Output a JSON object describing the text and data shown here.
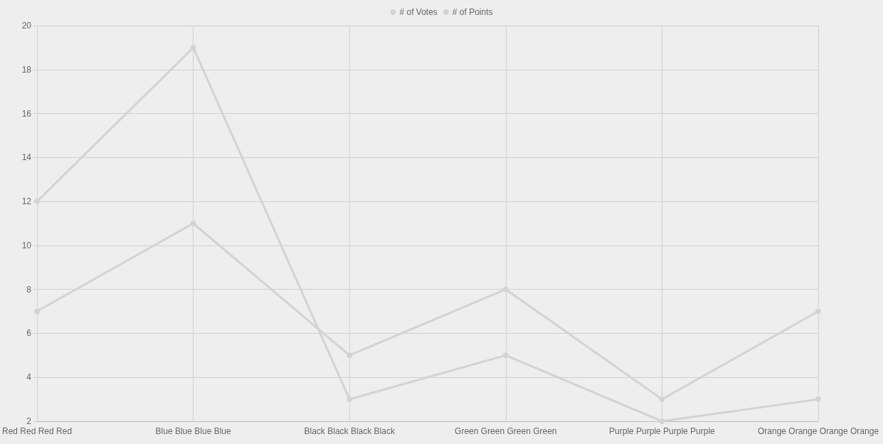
{
  "chart_data": {
    "type": "line",
    "categories": [
      "Red Red Red Red",
      "Blue Blue Blue Blue",
      "Black Black Black Black",
      "Green Green Green Green",
      "Purple Purple Purple Purple",
      "Orange Orange Orange Orange"
    ],
    "series": [
      {
        "name": "# of Votes",
        "color": "#d3d3d3",
        "values": [
          12,
          19,
          3,
          5,
          2,
          3
        ]
      },
      {
        "name": "# of Points",
        "color": "#d3d3d3",
        "values": [
          7,
          11,
          5,
          8,
          3,
          7
        ]
      }
    ],
    "ylim": [
      2,
      20
    ],
    "yticks": [
      2,
      4,
      6,
      8,
      10,
      12,
      14,
      16,
      18,
      20
    ],
    "grid": true,
    "legend": "top",
    "marker": "circle",
    "line_style": "solid"
  }
}
